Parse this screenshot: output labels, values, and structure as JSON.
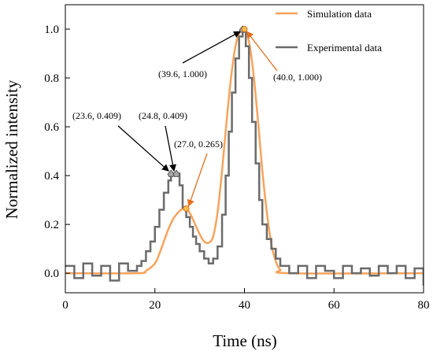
{
  "chart_data": {
    "type": "line",
    "title": "",
    "xlabel": "Time (ns)",
    "ylabel": "Normalized  intensity",
    "xlim": [
      0,
      80
    ],
    "ylim": [
      -0.08,
      1.1
    ],
    "xticks": [
      "0",
      "20",
      "40",
      "60",
      "80"
    ],
    "yticks": [
      "0.0",
      "0.2",
      "0.4",
      "0.6",
      "0.8",
      "1.0"
    ],
    "grid": false,
    "legend_position": "top-right",
    "colors": {
      "simulation": "#F7A35C",
      "experimental": "#6B6B6B",
      "sim_arrow": "#E07020",
      "exp_arrow": "#000000"
    },
    "series": [
      {
        "name": "Simulation data",
        "x": [
          0,
          16,
          18,
          20,
          21,
          22,
          23,
          24,
          25,
          26,
          27,
          28,
          29,
          30,
          31,
          32,
          33,
          34,
          35,
          36,
          37,
          38,
          39,
          40,
          41,
          42,
          43,
          44,
          45,
          46,
          47,
          48,
          50,
          80
        ],
        "y": [
          0.0,
          0.0,
          0.01,
          0.04,
          0.08,
          0.13,
          0.18,
          0.22,
          0.245,
          0.262,
          0.265,
          0.24,
          0.2,
          0.16,
          0.13,
          0.125,
          0.15,
          0.25,
          0.42,
          0.62,
          0.8,
          0.93,
          0.99,
          1.0,
          0.95,
          0.82,
          0.63,
          0.42,
          0.25,
          0.12,
          0.05,
          0.015,
          0.0,
          0.0
        ]
      },
      {
        "name": "Experimental data",
        "x": [
          0,
          2,
          4,
          6,
          8,
          10,
          12,
          14,
          16,
          17,
          18,
          19,
          20,
          21,
          22,
          23,
          23.6,
          24.2,
          24.8,
          25.5,
          26.2,
          27,
          27.8,
          28.5,
          29.2,
          30,
          31,
          32,
          33,
          34,
          35,
          35.8,
          36.5,
          37.2,
          38,
          38.8,
          39.6,
          40.3,
          41,
          41.7,
          42.5,
          43.3,
          44,
          45,
          46,
          47,
          48,
          50,
          52,
          54,
          56,
          58,
          60,
          62,
          64,
          66,
          68,
          70,
          72,
          74,
          76,
          78,
          80
        ],
        "y": [
          0.03,
          -0.02,
          0.04,
          -0.01,
          0.03,
          -0.03,
          0.04,
          0.01,
          0.03,
          0.05,
          0.09,
          0.13,
          0.19,
          0.26,
          0.33,
          0.38,
          0.409,
          0.4,
          0.409,
          0.36,
          0.27,
          0.23,
          0.19,
          0.15,
          0.12,
          0.09,
          0.06,
          0.04,
          0.06,
          0.11,
          0.24,
          0.4,
          0.58,
          0.74,
          0.88,
          0.97,
          1.0,
          0.93,
          0.8,
          0.62,
          0.45,
          0.3,
          0.2,
          0.14,
          0.1,
          0.06,
          0.03,
          0.0,
          0.03,
          -0.02,
          0.03,
          0.01,
          -0.02,
          0.03,
          0.0,
          0.02,
          -0.01,
          0.03,
          0.0,
          0.03,
          -0.02,
          0.02,
          -0.05
        ]
      }
    ],
    "annotations": [
      {
        "label": "(23.6, 0.409)",
        "x": 23.6,
        "y": 0.409,
        "series": "experimental"
      },
      {
        "label": "(24.8, 0.409)",
        "x": 24.8,
        "y": 0.409,
        "series": "experimental"
      },
      {
        "label": "(27.0, 0.265)",
        "x": 27.0,
        "y": 0.265,
        "series": "simulation"
      },
      {
        "label": "(39.6, 1.000)",
        "x": 39.6,
        "y": 1.0,
        "series": "experimental"
      },
      {
        "label": "(40.0, 1.000)",
        "x": 40.0,
        "y": 1.0,
        "series": "simulation"
      }
    ]
  }
}
